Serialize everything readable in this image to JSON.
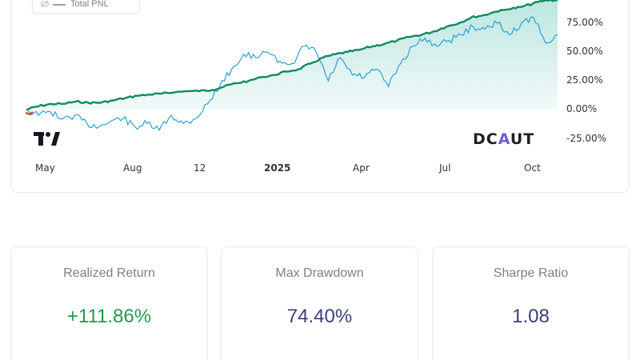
{
  "chart": {
    "legend_label": "Total PNL",
    "brand_prefix": "DC",
    "brand_accent": "A",
    "brand_suffix": "UT",
    "y_ticks": [
      "75.00%",
      "50.00%",
      "25.00%",
      "0.00%",
      "-25.00%"
    ],
    "x_ticks": [
      "May",
      "Aug",
      "12",
      "2025",
      "Apr",
      "Jul",
      "Oct"
    ],
    "colors": {
      "portfolio_line": "#0f8a5f",
      "benchmark_line": "#2a9fd6",
      "area_fill": "#a6ddd6",
      "start_marker": "#e0453b"
    }
  },
  "chart_data": {
    "type": "line",
    "y_unit": "%",
    "ylim": [
      -25,
      95
    ],
    "x_ticks": [
      "May",
      "Aug",
      "12",
      "2025",
      "Apr",
      "Jul",
      "Oct"
    ],
    "series": [
      {
        "name": "Total PNL",
        "values": [
          0,
          3,
          5,
          5,
          7,
          6,
          6,
          8,
          10,
          12,
          13,
          14,
          15,
          16,
          16,
          17,
          20,
          23,
          25,
          28,
          30,
          33,
          35,
          40,
          45,
          48,
          50,
          52,
          55,
          57,
          60,
          63,
          65,
          68,
          72,
          75,
          80,
          82,
          85,
          87,
          89,
          92,
          95,
          95
        ]
      },
      {
        "values": [
          0,
          -5,
          -2,
          -8,
          -5,
          -12,
          -15,
          -10,
          -8,
          -15,
          -12,
          -18,
          -5,
          -12,
          -8,
          5,
          20,
          35,
          48,
          45,
          50,
          42,
          40,
          55,
          50,
          25,
          45,
          30,
          28,
          35,
          20,
          40,
          55,
          62,
          55,
          60,
          65,
          72,
          70,
          75,
          65,
          75,
          80,
          58,
          65
        ]
      }
    ]
  },
  "stats": [
    {
      "label": "Realized Return",
      "value": "+111.86%",
      "color": "#1e9a52"
    },
    {
      "label": "Max Drawdown",
      "value": "74.40%",
      "color": "#3a3f78"
    },
    {
      "label": "Sharpe Ratio",
      "value": "1.08",
      "color": "#3a3f78"
    }
  ]
}
